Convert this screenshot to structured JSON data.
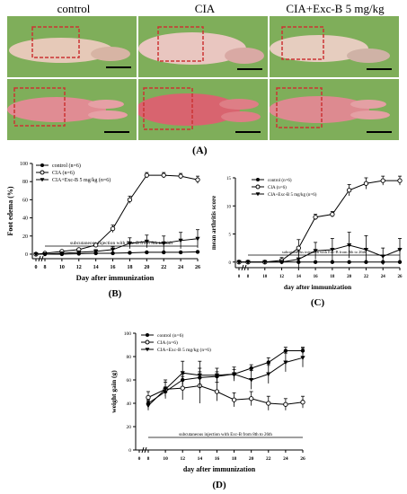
{
  "photos": {
    "column_headers": [
      "control",
      "CIA",
      "CIA+Exc-B 5 mg/kg"
    ],
    "panel_label": "(A)"
  },
  "chart_data": [
    {
      "type": "line",
      "panel_label": "(B)",
      "title": "",
      "xlabel": "Day after immunization",
      "ylabel": "Foot edema (%)",
      "x": [
        0,
        8,
        10,
        12,
        14,
        16,
        18,
        20,
        22,
        24,
        26
      ],
      "xticks": [
        "0",
        "8",
        "10",
        "12",
        "14",
        "16",
        "18",
        "20",
        "22",
        "24",
        "26"
      ],
      "ylim": [
        -5,
        100
      ],
      "yticks": [
        0,
        20,
        40,
        60,
        80,
        100
      ],
      "annotation": "subcutaneous injection with Exc-B from 8th to 26th",
      "legend": "top-left",
      "series": [
        {
          "name": "control (n=6)",
          "marker": "filled-circle",
          "values": [
            0,
            0,
            0,
            0.5,
            1,
            1,
            1.5,
            2,
            2,
            2,
            2.5
          ],
          "errors": [
            0,
            0.5,
            0.5,
            0.5,
            0.5,
            0.5,
            0.5,
            0.5,
            0.5,
            0.5,
            0.5
          ]
        },
        {
          "name": "CIA (n=6)",
          "marker": "open-circle",
          "values": [
            0,
            1,
            3,
            5,
            10,
            28,
            60,
            87,
            87,
            86,
            82
          ],
          "errors": [
            0,
            0.5,
            1,
            1,
            2,
            4,
            4,
            3,
            3,
            3,
            4
          ]
        },
        {
          "name": "CIA+Exc-B 5 mg/kg (n=6)",
          "marker": "filled-triangle",
          "values": [
            0,
            0,
            1,
            2,
            3,
            5,
            12,
            14,
            12,
            15,
            17
          ],
          "errors": [
            0,
            0.5,
            1,
            1,
            2,
            3,
            6,
            7,
            8,
            9,
            10
          ]
        }
      ]
    },
    {
      "type": "line",
      "panel_label": "(C)",
      "title": "",
      "xlabel": "day after immunization",
      "ylabel": "mean arthritis score",
      "x": [
        0,
        8,
        10,
        12,
        14,
        16,
        18,
        20,
        22,
        24,
        26
      ],
      "xticks": [
        "0",
        "8",
        "10",
        "12",
        "14",
        "16",
        "18",
        "20",
        "22",
        "24",
        "26"
      ],
      "ylim": [
        -1,
        15
      ],
      "yticks": [
        0,
        5,
        10,
        15
      ],
      "annotation": "subcutaneous injection with Exc-B from 8th to 26th",
      "legend": "top-left",
      "series": [
        {
          "name": "control (n=6)",
          "marker": "filled-circle",
          "values": [
            0,
            0,
            0,
            0,
            0,
            0,
            0,
            0,
            0,
            0,
            0
          ],
          "errors": [
            0,
            0,
            0,
            0,
            0,
            0,
            0,
            0,
            0,
            0,
            0
          ]
        },
        {
          "name": "CIA (n=6)",
          "marker": "open-circle",
          "values": [
            0,
            0,
            0,
            0.3,
            2.5,
            8,
            8.5,
            12.8,
            14,
            14.5,
            14.5
          ],
          "errors": [
            0,
            0,
            0,
            0.5,
            1.5,
            0.5,
            0.5,
            1,
            1,
            0.8,
            0.8
          ]
        },
        {
          "name": "CIA+Exc-B 5 mg/kg (n=6)",
          "marker": "filled-triangle",
          "values": [
            0,
            0,
            0,
            0,
            0.5,
            2,
            2.2,
            3,
            2.2,
            1,
            2.2
          ],
          "errors": [
            0,
            0,
            0,
            0.3,
            1.5,
            1.5,
            2,
            2.3,
            2.5,
            1.5,
            2
          ]
        }
      ]
    },
    {
      "type": "line",
      "panel_label": "(D)",
      "title": "",
      "xlabel": "day after immunization",
      "ylabel": "weight gain (g)",
      "x": [
        0,
        8,
        10,
        12,
        14,
        16,
        18,
        20,
        22,
        24,
        26
      ],
      "xticks": [
        "0",
        "8",
        "10",
        "12",
        "14",
        "16",
        "18",
        "20",
        "22",
        "24",
        "26"
      ],
      "ylim": [
        0,
        100
      ],
      "yticks": [
        0,
        20,
        40,
        60,
        80,
        100
      ],
      "annotation": "subcutaneous injection with Exc-B from 8th to 26th",
      "legend": "top-left",
      "series": [
        {
          "name": "control (n=6)",
          "marker": "filled-circle",
          "values": [
            null,
            40,
            50,
            60,
            62,
            63,
            65,
            70,
            75,
            85,
            85
          ],
          "errors": [
            0,
            3,
            4,
            5,
            5,
            4,
            4,
            3,
            4,
            3,
            3
          ]
        },
        {
          "name": "CIA (n=6)",
          "marker": "open-circle",
          "values": [
            null,
            45,
            52,
            53,
            55,
            50,
            43,
            44,
            40,
            39,
            41
          ],
          "errors": [
            0,
            5,
            6,
            10,
            15,
            8,
            6,
            6,
            6,
            5,
            5
          ]
        },
        {
          "name": "CIA+Exc-B 5 mg/kg (n=6)",
          "marker": "filled-triangle",
          "values": [
            null,
            38,
            52,
            66,
            64,
            64,
            65,
            60,
            65,
            75,
            79
          ],
          "errors": [
            0,
            4,
            8,
            10,
            12,
            6,
            6,
            8,
            8,
            8,
            8
          ]
        }
      ]
    }
  ]
}
